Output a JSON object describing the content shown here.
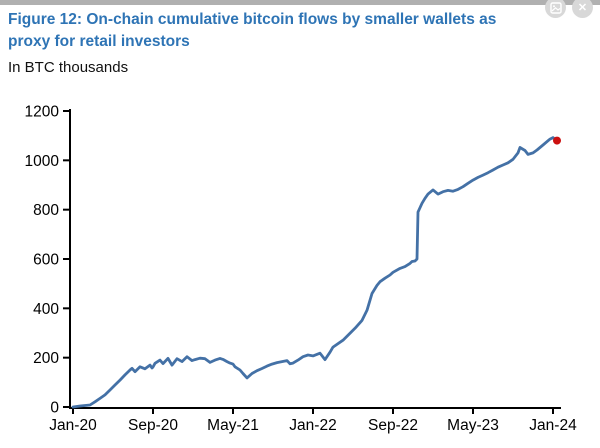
{
  "header": {
    "title_lines": [
      "Figure 12: On-chain cumulative bitcoin flows by smaller wallets as",
      "proxy for retail investors"
    ],
    "subtitle": "In BTC thousands"
  },
  "controls": {
    "close_glyph": "✕"
  },
  "colors": {
    "title": "#2e74b5",
    "line": "#4471a6",
    "marker": "#cc1010",
    "axis": "#000000",
    "topbar": "#b0b0b0",
    "button_bg": "#d8d8d8"
  },
  "chart_data": {
    "type": "line",
    "title": "Figure 12: On-chain cumulative bitcoin flows by smaller wallets as proxy for retail investors",
    "ylabel": "In BTC thousands",
    "xlabel": "",
    "x_unit": "months after Jan-2020",
    "xlim": [
      0,
      48.8
    ],
    "ylim": [
      0,
      1200
    ],
    "grid": false,
    "legend": false,
    "y_ticks": [
      0,
      200,
      400,
      600,
      800,
      1000,
      1200
    ],
    "x_tick_labels": [
      "Jan-20",
      "Sep-20",
      "May-21",
      "Jan-22",
      "Sep-22",
      "May-23",
      "Jan-24"
    ],
    "x_tick_months": [
      0,
      8,
      16,
      24,
      32,
      40,
      48
    ],
    "series": [
      {
        "name": "Cumulative bitcoin flows, smaller wallets (BTC thousands)",
        "x": [
          0,
          0.7,
          1.7,
          2.2,
          2.7,
          3.2,
          3.7,
          4.2,
          4.7,
          5.2,
          5.7,
          5.9,
          6.2,
          6.7,
          7.2,
          7.7,
          7.9,
          8.0,
          8.2,
          8.7,
          9.0,
          9.5,
          9.9,
          10.4,
          10.9,
          11.4,
          11.9,
          12.2,
          12.7,
          13.2,
          13.7,
          14.2,
          14.7,
          15.0,
          15.4,
          15.7,
          16.0,
          16.2,
          16.7,
          17.0,
          17.4,
          17.9,
          18.4,
          18.9,
          19.4,
          19.9,
          20.4,
          20.9,
          21.4,
          21.7,
          22.0,
          22.5,
          23.0,
          23.5,
          24.0,
          24.7,
          25.2,
          25.7,
          26.0,
          27.0,
          27.7,
          28.2,
          28.9,
          29.4,
          29.9,
          30.4,
          30.7,
          31.2,
          31.7,
          32.0,
          32.7,
          33.2,
          33.7,
          33.9,
          34.2,
          34.4,
          34.5,
          34.9,
          35.2,
          35.5,
          36.0,
          36.5,
          37.0,
          37.5,
          38.0,
          38.5,
          39.0,
          39.5,
          40.0,
          40.5,
          41.0,
          41.5,
          42.0,
          42.5,
          43.0,
          43.5,
          44.0,
          44.5,
          44.7,
          45.2,
          45.5,
          46.0,
          46.4,
          47.0,
          47.7,
          48.0,
          48.4
        ],
        "y": [
          0,
          4,
          8,
          21,
          35,
          49,
          69,
          89,
          109,
          130,
          150,
          157,
          143,
          163,
          155,
          170,
          158,
          162,
          177,
          190,
          176,
          197,
          170,
          196,
          184,
          204,
          188,
          192,
          198,
          196,
          181,
          190,
          197,
          193,
          184,
          178,
          174,
          163,
          150,
          136,
          118,
          136,
          147,
          156,
          166,
          174,
          180,
          184,
          188,
          175,
          178,
          190,
          204,
          211,
          207,
          218,
          192,
          222,
          243,
          271,
          299,
          319,
          351,
          392,
          460,
          493,
          508,
          522,
          535,
          546,
          562,
          569,
          582,
          590,
          592,
          600,
          790,
          826,
          846,
          863,
          880,
          863,
          873,
          878,
          875,
          882,
          893,
          907,
          920,
          931,
          940,
          950,
          961,
          972,
          981,
          990,
          1004,
          1030,
          1052,
          1040,
          1024,
          1030,
          1042,
          1062,
          1086,
          1092,
          1080
        ]
      }
    ],
    "end_marker": {
      "x": 48.4,
      "y": 1080
    }
  }
}
